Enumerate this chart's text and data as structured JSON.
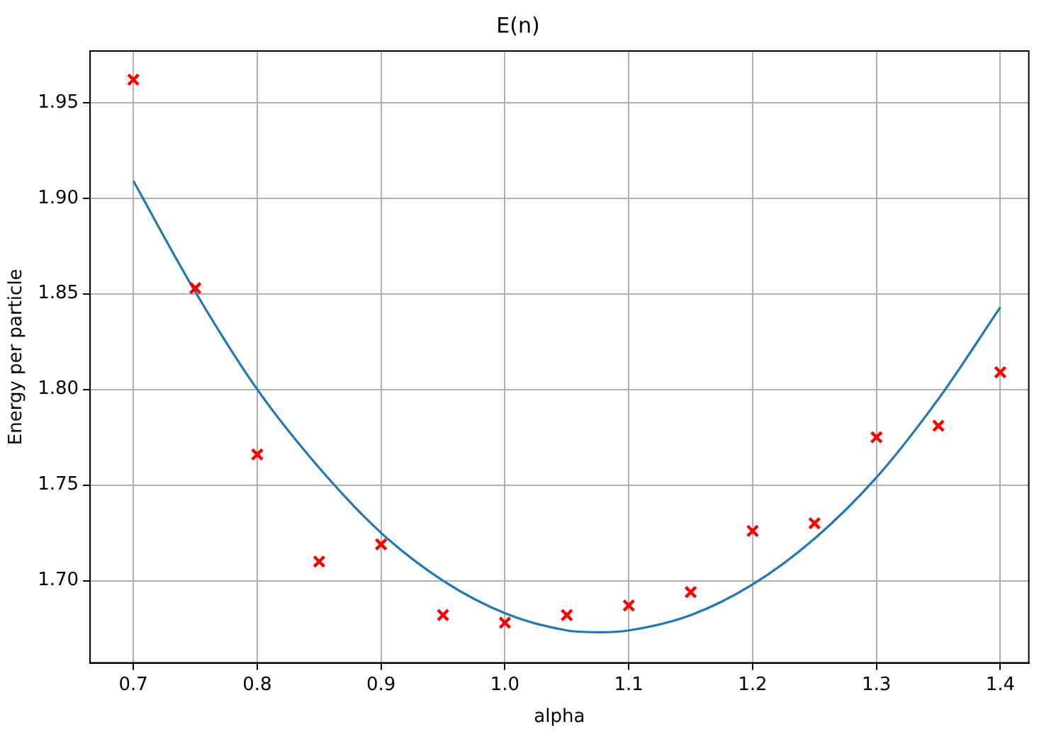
{
  "chart_data": {
    "type": "scatter",
    "title": "E(n)",
    "xlabel": "alpha",
    "ylabel": "Energy per particle",
    "xlim": [
      0.665,
      1.423
    ],
    "ylim": [
      1.657,
      1.977
    ],
    "xticks": [
      0.7,
      0.8,
      0.9,
      {
        "value": 1.0,
        "label": "1.0"
      },
      1.1,
      1.2,
      1.3,
      1.4
    ],
    "yticks": [
      {
        "value": 1.7,
        "label": "1.70"
      },
      1.75,
      {
        "value": 1.8,
        "label": "1.80"
      },
      1.85,
      {
        "value": 1.9,
        "label": "1.90"
      },
      1.95
    ],
    "grid": true,
    "legend": false,
    "series": [
      {
        "type": "line",
        "color": "#1f77b4",
        "marker": "none",
        "x": [
          0.7,
          0.75,
          0.8,
          0.85,
          0.9,
          0.95,
          1.0,
          1.05,
          1.078,
          1.1,
          1.15,
          1.2,
          1.25,
          1.3,
          1.35,
          1.4
        ],
        "values": [
          1.909,
          1.851,
          1.8,
          1.759,
          1.725,
          1.7,
          1.683,
          1.674,
          1.673,
          1.674,
          1.682,
          1.698,
          1.722,
          1.754,
          1.795,
          1.843
        ]
      },
      {
        "color": "#ff0000",
        "marker": "cross",
        "x": [
          0.7,
          0.75,
          0.8,
          0.85,
          0.9,
          0.95,
          1.0,
          1.05,
          1.1,
          1.15,
          1.2,
          1.25,
          1.3,
          1.35,
          1.4
        ],
        "values": [
          1.962,
          1.853,
          1.766,
          1.71,
          1.719,
          1.682,
          1.678,
          1.682,
          1.687,
          1.694,
          1.726,
          1.73,
          1.775,
          1.781,
          1.809
        ]
      }
    ]
  }
}
